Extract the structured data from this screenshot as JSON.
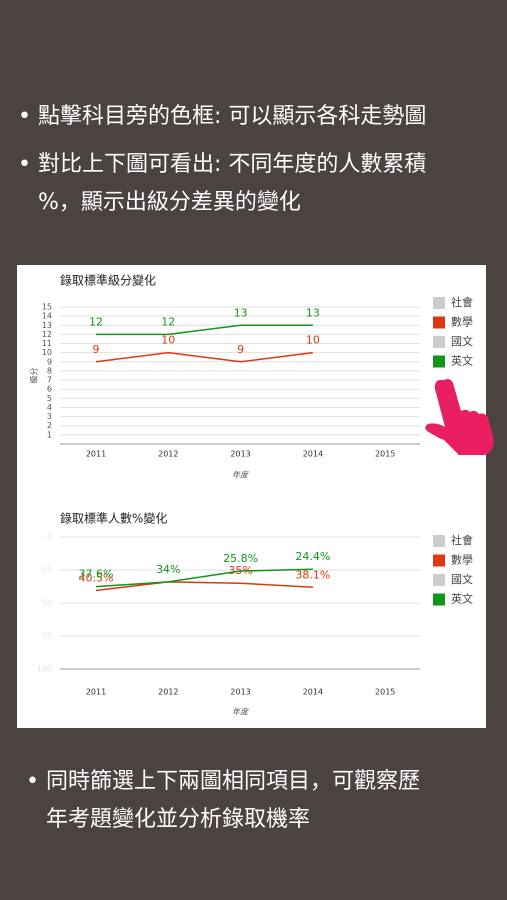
{
  "bullets": [
    [
      "點擊科目旁的色框: 可以顯示各科走勢圖"
    ],
    [
      "對比上下圖可看出: 不同年度的人數累積",
      "%，顯示出級分差異的變化"
    ],
    [
      "同時篩選上下兩圖相同項目，可觀察歷",
      "年考題變化並分析錄取機率"
    ]
  ],
  "chart_data": [
    {
      "type": "line",
      "title": "錄取標準級分變化",
      "y_label": "級分",
      "x_label": "年度",
      "categories": [
        "2011",
        "2012",
        "2013",
        "2014",
        "2015"
      ],
      "series": [
        {
          "name": "社會",
          "color": "#cccccc",
          "values": [
            null,
            null,
            null,
            null,
            null
          ]
        },
        {
          "name": "數學",
          "color": "#dc3912",
          "values": [
            9,
            10,
            9,
            10,
            null
          ]
        },
        {
          "name": "國文",
          "color": "#cccccc",
          "values": [
            null,
            null,
            null,
            null,
            null
          ]
        },
        {
          "name": "英文",
          "color": "#109618",
          "values": [
            12,
            12,
            13,
            13,
            null
          ]
        }
      ],
      "ylim": [
        0,
        15
      ],
      "yticks": [
        1,
        2,
        3,
        4,
        5,
        6,
        7,
        8,
        9,
        10,
        11,
        12,
        13,
        14,
        15
      ],
      "grid": true
    },
    {
      "type": "line",
      "title": "錄取標準人數%變化",
      "x_label": "年度",
      "categories": [
        "2011",
        "2012",
        "2013",
        "2014",
        "2015"
      ],
      "series": [
        {
          "name": "社會",
          "color": "#cccccc",
          "values": [
            null,
            null,
            null,
            null,
            null
          ]
        },
        {
          "name": "數學",
          "color": "#dc3912",
          "values": [
            40.5,
            34,
            35,
            38.1,
            null
          ],
          "value_labels": [
            "40.5%",
            null,
            "35%",
            "38.1%",
            null
          ]
        },
        {
          "name": "國文",
          "color": "#cccccc",
          "values": [
            null,
            null,
            null,
            null,
            null
          ]
        },
        {
          "name": "英文",
          "color": "#109618",
          "values": [
            37.6,
            34,
            25.8,
            24.4,
            null
          ],
          "value_labels": [
            "37.6%",
            "34%",
            "25.8%",
            "24.4%",
            null
          ]
        }
      ],
      "ylim": [
        0,
        100
      ],
      "yticks": [
        0,
        25,
        50,
        75,
        100
      ],
      "reversed": true,
      "grid": true
    }
  ]
}
